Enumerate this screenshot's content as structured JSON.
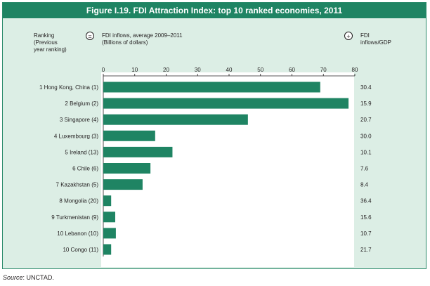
{
  "title": "Figure I.19. FDI Attraction Index: top 10 ranked economies, 2011",
  "header": {
    "ranking_label": "Ranking (Previous year ranking)",
    "ranking_lines": [
      "Ranking",
      "(Previous",
      "year ranking)"
    ],
    "equals_symbol": "=",
    "inflows_lines": [
      "FDI inflows, average 2009–2011",
      "(Billions of dollars)"
    ],
    "plus_symbol": "+",
    "gdp_lines": [
      "FDI",
      "inflows/GDP"
    ]
  },
  "source": {
    "label": "Source",
    "text": ": UNCTAD."
  },
  "colors": {
    "bar": "#1f8463",
    "title_bg": "#1f8463",
    "panel_bg": "#dceee5"
  },
  "chart_data": {
    "type": "bar",
    "orientation": "horizontal",
    "title": "Figure I.19. FDI Attraction Index: top 10 ranked economies, 2011",
    "xlabel": "FDI inflows, average 2009–2011 (Billions of dollars)",
    "xlim": [
      0,
      80
    ],
    "xticks": [
      0,
      10,
      20,
      30,
      40,
      50,
      60,
      70,
      80
    ],
    "grid": false,
    "categories": [
      "1 Hong Kong, China (1)",
      "2 Belgium (2)",
      "3 Singapore (4)",
      "4 Luxembourg (3)",
      "5 Ireland (13)",
      "6 Chile (6)",
      "7 Kazakhstan (5)",
      "8 Mongolia (20)",
      "9 Turkmenistan (9)",
      "10 Lebanon (10)",
      "10 Congo (11)"
    ],
    "values": [
      69,
      78,
      46,
      16.5,
      22,
      15,
      12.5,
      2.5,
      3.8,
      4,
      2.5
    ],
    "side_label": "FDI inflows/GDP",
    "side_values": [
      "30.4",
      "15.9",
      "20.7",
      "30.0",
      "10.1",
      "7.6",
      "8.4",
      "36.4",
      "15.6",
      "10.7",
      "21.7"
    ]
  }
}
